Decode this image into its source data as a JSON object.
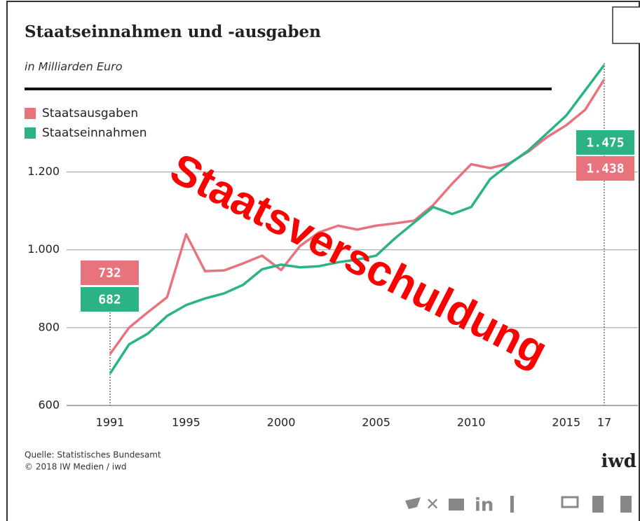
{
  "chart_data": {
    "type": "line",
    "title": "Staatseinnahmen und -ausgaben",
    "subtitle": "in Milliarden Euro",
    "x": [
      1991,
      1992,
      1993,
      1994,
      1995,
      1996,
      1997,
      1998,
      1999,
      2000,
      2001,
      2002,
      2003,
      2004,
      2005,
      2006,
      2007,
      2008,
      2009,
      2010,
      2011,
      2012,
      2013,
      2014,
      2015,
      2016,
      2017
    ],
    "series": [
      {
        "name": "Staatsausgaben",
        "color": "#e8737d",
        "values": [
          732,
          800,
          840,
          878,
          1040,
          945,
          947,
          965,
          985,
          948,
          1010,
          1045,
          1062,
          1052,
          1062,
          1068,
          1075,
          1115,
          1170,
          1220,
          1210,
          1222,
          1252,
          1290,
          1320,
          1360,
          1438
        ],
        "value_labels": [
          "732",
          null,
          null,
          null,
          null,
          null,
          null,
          null,
          null,
          null,
          null,
          null,
          null,
          null,
          null,
          null,
          null,
          null,
          null,
          null,
          null,
          null,
          null,
          null,
          null,
          null,
          "1.438"
        ]
      },
      {
        "name": "Staatseinnahmen",
        "color": "#2bb385",
        "values": [
          682,
          757,
          785,
          830,
          858,
          875,
          888,
          910,
          950,
          962,
          955,
          958,
          968,
          975,
          985,
          1030,
          1070,
          1110,
          1092,
          1110,
          1182,
          1220,
          1255,
          1300,
          1345,
          1410,
          1475
        ],
        "value_labels": [
          "682",
          null,
          null,
          null,
          null,
          null,
          null,
          null,
          null,
          null,
          null,
          null,
          null,
          null,
          null,
          null,
          null,
          null,
          null,
          null,
          null,
          null,
          null,
          null,
          null,
          null,
          "1.475"
        ]
      }
    ],
    "xlim": [
      1991,
      2017
    ],
    "xticks": [
      1991,
      1995,
      2000,
      2005,
      2010,
      2015,
      {
        "value": 2017,
        "label": "17"
      }
    ],
    "ylim": [
      600,
      1480
    ],
    "yticks": [
      600,
      800,
      {
        "value": 1000,
        "label": "1.000"
      },
      {
        "value": 1200,
        "label": "1.200"
      }
    ],
    "grid": true,
    "legend": "upper left",
    "source": "Quelle: Statistisches Bundesamt",
    "copyright": "© 2018 IW Medien / iwd",
    "logo": "iwd",
    "watermark": "Staatsverschuldung",
    "share_linkedin": "in"
  }
}
